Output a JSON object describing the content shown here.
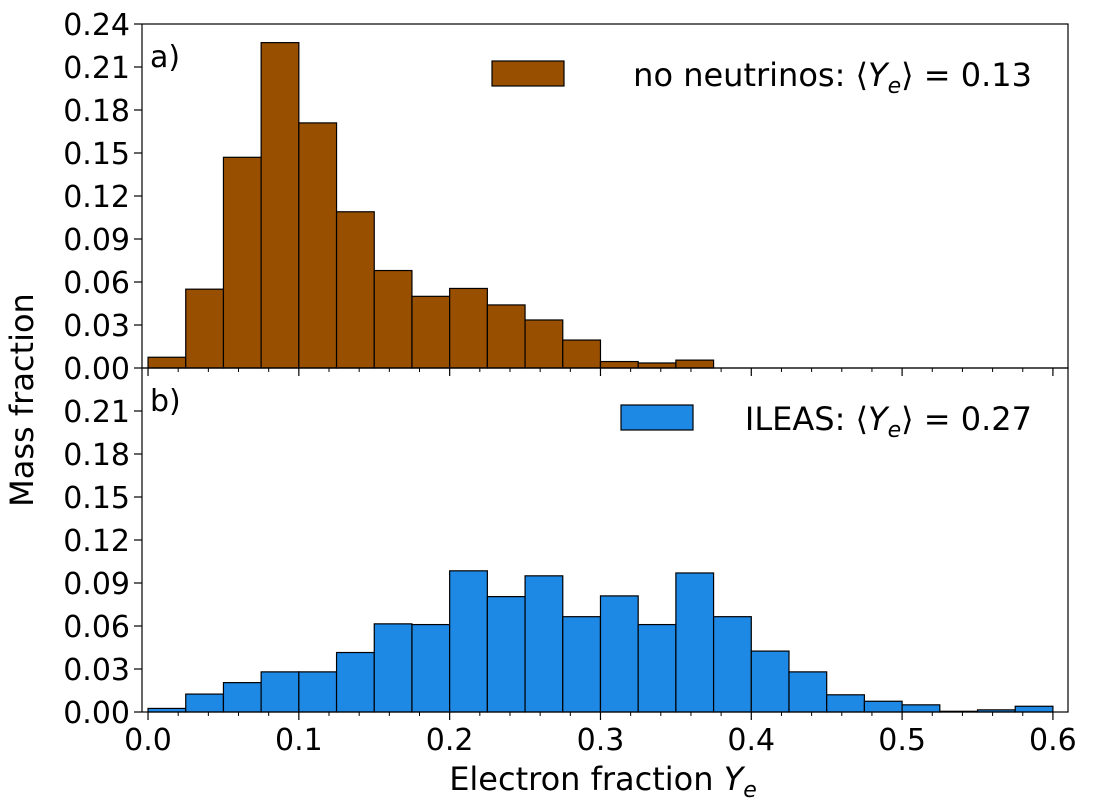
{
  "chart_data": [
    {
      "type": "bar",
      "panel_label": "a)",
      "legend": {
        "name": "no neutrinos",
        "stat": "0.13",
        "position": "upper-right"
      },
      "color": "#994f00",
      "edge_color": "#000000",
      "bin_width": 0.025,
      "bin_starts": [
        0.0,
        0.025,
        0.05,
        0.075,
        0.1,
        0.125,
        0.15,
        0.175,
        0.2,
        0.225,
        0.25,
        0.275,
        0.3,
        0.325,
        0.35
      ],
      "values": [
        0.0075,
        0.055,
        0.147,
        0.227,
        0.171,
        0.109,
        0.068,
        0.05,
        0.0555,
        0.044,
        0.0335,
        0.0195,
        0.0045,
        0.0035,
        0.0055
      ],
      "ylim": [
        0,
        0.24
      ],
      "yticks": [
        "0.00",
        "0.03",
        "0.06",
        "0.09",
        "0.12",
        "0.15",
        "0.18",
        "0.21",
        "0.24"
      ]
    },
    {
      "type": "bar",
      "panel_label": "b)",
      "legend": {
        "name": "ILEAS",
        "stat": "0.27",
        "position": "upper-right"
      },
      "color": "#1e88e5",
      "edge_color": "#000000",
      "bin_width": 0.025,
      "bin_starts": [
        0.0,
        0.025,
        0.05,
        0.075,
        0.1,
        0.125,
        0.15,
        0.175,
        0.2,
        0.225,
        0.25,
        0.275,
        0.3,
        0.325,
        0.35,
        0.375,
        0.4,
        0.425,
        0.45,
        0.475,
        0.5,
        0.525,
        0.55,
        0.575
      ],
      "values": [
        0.0025,
        0.0125,
        0.0205,
        0.028,
        0.028,
        0.0415,
        0.0615,
        0.061,
        0.0985,
        0.0805,
        0.095,
        0.0665,
        0.081,
        0.061,
        0.097,
        0.0665,
        0.0425,
        0.028,
        0.012,
        0.0075,
        0.005,
        0.0005,
        0.0015,
        0.004
      ],
      "ylim": [
        0,
        0.24
      ],
      "yticks": [
        "0.00",
        "0.03",
        "0.06",
        "0.09",
        "0.12",
        "0.15",
        "0.18",
        "0.21"
      ]
    }
  ],
  "shared": {
    "xlabel": "Electron fraction",
    "xlabel_symbol": "Y",
    "xlabel_subscript": "e",
    "ylabel": "Mass fraction",
    "xlim": [
      -0.004,
      0.61
    ],
    "xticks": [
      0.0,
      0.1,
      0.2,
      0.3,
      0.4,
      0.5,
      0.6
    ],
    "xtick_labels": [
      "0.0",
      "0.1",
      "0.2",
      "0.3",
      "0.4",
      "0.5",
      "0.6"
    ],
    "minor_xtick_step": 0.02,
    "legend_prefix": ": ⟨",
    "legend_symbol": "Y",
    "legend_subscript": "e",
    "legend_suffix": "⟩ = "
  }
}
